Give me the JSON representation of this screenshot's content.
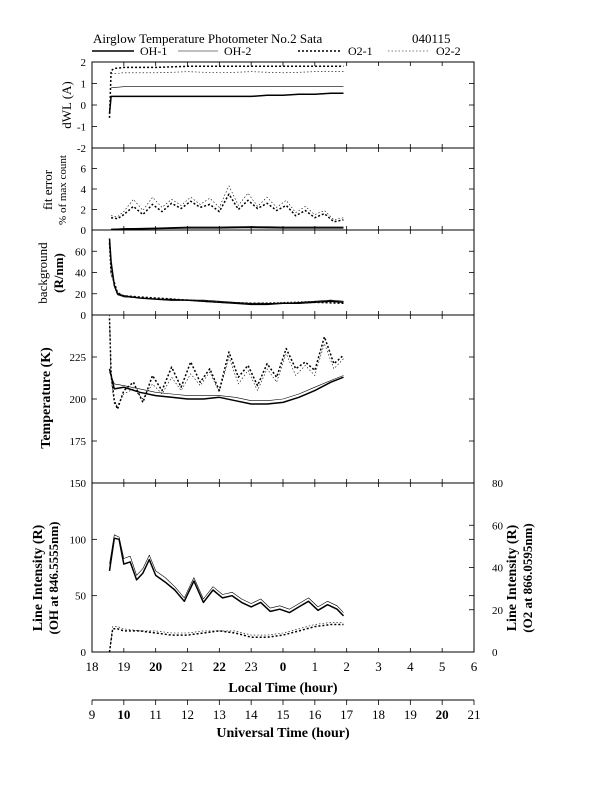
{
  "header": {
    "title": "Airglow Temperature Photometer No.2  Sata",
    "date_code": "040115"
  },
  "legend": [
    {
      "label": "OH-1",
      "style": "thick-solid"
    },
    {
      "label": "OH-2",
      "style": "thin-solid"
    },
    {
      "label": "O2-1",
      "style": "thick-dotted"
    },
    {
      "label": "O2-2",
      "style": "thin-dotted"
    }
  ],
  "colors": {
    "ink": "#000000",
    "background": "#ffffff"
  },
  "axes": {
    "local_time_label": "Local Time (hour)",
    "universal_time_label": "Universal Time (hour)",
    "local_ticks": [
      "18",
      "19",
      "20",
      "21",
      "22",
      "23",
      "0",
      "1",
      "2",
      "3",
      "4",
      "5",
      "6"
    ],
    "ut_ticks": [
      "9",
      "10",
      "11",
      "12",
      "13",
      "14",
      "15",
      "16",
      "17",
      "18",
      "19",
      "20",
      "21"
    ]
  },
  "chart_data": [
    {
      "type": "line",
      "title": "",
      "ylabel": "dWL (A)",
      "xlabel": "",
      "xlim": [
        18,
        30
      ],
      "ylim": [
        -2,
        2
      ],
      "yticks": [
        "2",
        "1",
        "0",
        "-1",
        "-2"
      ],
      "grid": false,
      "series": [
        {
          "name": "OH-1",
          "x": [
            18.55,
            18.6,
            19,
            20,
            21,
            22,
            23,
            23.5,
            24,
            24.5,
            25,
            25.5,
            25.9
          ],
          "y": [
            -0.4,
            0.4,
            0.4,
            0.4,
            0.4,
            0.4,
            0.4,
            0.45,
            0.45,
            0.5,
            0.5,
            0.55,
            0.55
          ]
        },
        {
          "name": "OH-2",
          "x": [
            18.6,
            19,
            20,
            21,
            22,
            23,
            24,
            25,
            25.9
          ],
          "y": [
            0.8,
            0.85,
            0.85,
            0.85,
            0.85,
            0.85,
            0.85,
            0.85,
            0.85
          ]
        },
        {
          "name": "O2-1",
          "x": [
            18.55,
            18.6,
            18.7,
            19,
            20,
            21,
            22,
            23,
            24,
            25,
            25.9
          ],
          "y": [
            -0.6,
            1.6,
            1.7,
            1.75,
            1.75,
            1.8,
            1.8,
            1.8,
            1.8,
            1.8,
            1.8
          ]
        },
        {
          "name": "O2-2",
          "x": [
            18.6,
            19,
            20,
            21,
            22,
            23,
            24,
            25,
            25.9
          ],
          "y": [
            1.45,
            1.5,
            1.5,
            1.55,
            1.5,
            1.55,
            1.5,
            1.55,
            1.55
          ]
        }
      ]
    },
    {
      "type": "line",
      "title": "",
      "ylabel": "fit error",
      "ylabel2": "% of max count",
      "xlim": [
        18,
        30
      ],
      "ylim": [
        0,
        8
      ],
      "yticks": [
        "6",
        "4",
        "2",
        "0"
      ],
      "grid": false,
      "series": [
        {
          "name": "OH-1",
          "x": [
            18.6,
            19,
            20,
            21,
            22,
            23,
            24,
            25,
            25.9
          ],
          "y": [
            0.05,
            0.1,
            0.15,
            0.2,
            0.2,
            0.25,
            0.2,
            0.2,
            0.2
          ]
        },
        {
          "name": "OH-2",
          "x": [
            18.6,
            19,
            20,
            21,
            22,
            23,
            24,
            25,
            25.9
          ],
          "y": [
            0.1,
            0.15,
            0.2,
            0.3,
            0.3,
            0.35,
            0.3,
            0.3,
            0.3
          ]
        },
        {
          "name": "O2-1",
          "x": [
            18.6,
            18.8,
            19,
            19.3,
            19.6,
            19.9,
            20.2,
            20.5,
            20.8,
            21.1,
            21.4,
            21.7,
            22,
            22.3,
            22.6,
            22.9,
            23.2,
            23.5,
            23.8,
            24.1,
            24.4,
            24.7,
            25,
            25.3,
            25.6,
            25.9
          ],
          "y": [
            1.2,
            1.1,
            1.5,
            2.3,
            1.5,
            2.5,
            1.8,
            2.6,
            2.1,
            2.8,
            2.2,
            2.5,
            1.8,
            3.5,
            2.0,
            2.9,
            2.1,
            2.6,
            1.9,
            2.4,
            1.4,
            1.9,
            1.2,
            1.6,
            0.8,
            1.0
          ]
        },
        {
          "name": "O2-2",
          "x": [
            18.6,
            18.8,
            19,
            19.3,
            19.6,
            19.9,
            20.2,
            20.5,
            20.8,
            21.1,
            21.4,
            21.7,
            22,
            22.3,
            22.6,
            22.9,
            23.2,
            23.5,
            23.8,
            24.1,
            24.4,
            24.7,
            25,
            25.3,
            25.6,
            25.9
          ],
          "y": [
            1.4,
            1.3,
            1.8,
            3.0,
            1.9,
            3.2,
            2.2,
            3.0,
            2.4,
            3.2,
            2.5,
            3.1,
            2.2,
            4.3,
            2.4,
            3.6,
            2.3,
            3.2,
            2.2,
            2.9,
            1.7,
            2.3,
            1.5,
            1.9,
            1.0,
            1.2
          ]
        }
      ]
    },
    {
      "type": "line",
      "title": "",
      "ylabel": "background",
      "ylabel2": "(R/nm)",
      "xlim": [
        18,
        30
      ],
      "ylim": [
        0,
        80
      ],
      "yticks": [
        "60",
        "40",
        "20",
        "0"
      ],
      "grid": false,
      "series": [
        {
          "name": "OH-1",
          "x": [
            18.55,
            18.6,
            18.7,
            18.8,
            19,
            19.5,
            20,
            20.5,
            21,
            21.5,
            22,
            22.5,
            23,
            23.5,
            24,
            24.5,
            25,
            25.5,
            25.9
          ],
          "y": [
            72,
            50,
            28,
            20,
            18,
            16,
            15,
            14,
            14,
            13,
            12,
            11,
            10,
            10,
            11,
            11,
            12,
            13,
            12
          ]
        },
        {
          "name": "OH-2",
          "x": [
            18.55,
            18.6,
            18.7,
            18.8,
            19,
            19.5,
            20,
            20.5,
            21,
            21.5,
            22,
            22.5,
            23,
            23.5,
            24,
            24.5,
            25,
            25.5,
            25.9
          ],
          "y": [
            70,
            48,
            27,
            19,
            17,
            16,
            15,
            15,
            14,
            14,
            13,
            12,
            11,
            11,
            11,
            12,
            13,
            14,
            13
          ]
        },
        {
          "name": "O2-1",
          "x": [
            18.55,
            18.6,
            18.8,
            19,
            20,
            21,
            22,
            23,
            24,
            25,
            25.9
          ],
          "y": [
            68,
            40,
            21,
            18,
            16,
            14,
            12,
            11,
            11,
            12,
            11
          ]
        },
        {
          "name": "O2-2",
          "x": [
            18.55,
            18.6,
            18.8,
            19,
            20,
            21,
            22,
            23,
            24,
            25,
            25.9
          ],
          "y": [
            66,
            38,
            20,
            17,
            15,
            14,
            12,
            11,
            12,
            13,
            12
          ]
        }
      ]
    },
    {
      "type": "line",
      "title": "",
      "ylabel": "Temperature (K)",
      "xlim": [
        18,
        30
      ],
      "ylim": [
        150,
        250
      ],
      "yticks": [
        "225",
        "200",
        "175"
      ],
      "grid": false,
      "series": [
        {
          "name": "OH-1",
          "x": [
            18.55,
            18.7,
            19,
            19.5,
            20,
            20.5,
            21,
            21.5,
            22,
            22.5,
            23,
            23.5,
            24,
            24.5,
            25,
            25.5,
            25.9
          ],
          "y": [
            218,
            206,
            207,
            204,
            202,
            201,
            200,
            200,
            201,
            199,
            197,
            197,
            198,
            201,
            205,
            210,
            213
          ]
        },
        {
          "name": "OH-2",
          "x": [
            18.55,
            18.7,
            19,
            19.5,
            20,
            20.5,
            21,
            21.5,
            22,
            22.5,
            23,
            23.5,
            24,
            24.5,
            25,
            25.5,
            25.9
          ],
          "y": [
            216,
            209,
            208,
            206,
            204,
            203,
            202,
            202,
            202,
            201,
            199,
            199,
            200,
            203,
            207,
            211,
            214
          ]
        },
        {
          "name": "O2-1",
          "x": [
            18.55,
            18.6,
            18.7,
            18.8,
            19,
            19.3,
            19.6,
            19.9,
            20.2,
            20.5,
            20.8,
            21.1,
            21.4,
            21.7,
            22,
            22.3,
            22.6,
            22.9,
            23.2,
            23.5,
            23.8,
            24.1,
            24.4,
            24.7,
            25,
            25.3,
            25.6,
            25.9
          ],
          "y": [
            248,
            215,
            199,
            194,
            205,
            210,
            198,
            214,
            205,
            219,
            207,
            222,
            210,
            218,
            205,
            228,
            213,
            220,
            208,
            221,
            213,
            230,
            218,
            222,
            217,
            237,
            221,
            226
          ]
        },
        {
          "name": "O2-2",
          "x": [
            18.55,
            18.6,
            18.7,
            18.8,
            19,
            19.3,
            19.6,
            19.9,
            20.2,
            20.5,
            20.8,
            21.1,
            21.4,
            21.7,
            22,
            22.3,
            22.6,
            22.9,
            23.2,
            23.5,
            23.8,
            24.1,
            24.4,
            24.7,
            25,
            25.3,
            25.6,
            25.9
          ],
          "y": [
            250,
            212,
            197,
            196,
            203,
            206,
            200,
            209,
            203,
            213,
            205,
            215,
            208,
            216,
            204,
            225,
            209,
            217,
            205,
            218,
            210,
            227,
            214,
            220,
            214,
            233,
            218,
            224
          ]
        }
      ]
    },
    {
      "type": "line",
      "title": "",
      "ylabel": "Line Intensity (R)",
      "ylabel2": "(OH at 846.5555nm)",
      "ylabel_right": "Line Intensity (R)",
      "ylabel_right2": "(O2 at 866.0595nm)",
      "xlim": [
        18,
        30
      ],
      "ylim": [
        0,
        150
      ],
      "ylim_right": [
        0,
        80
      ],
      "yticks": [
        "150",
        "100",
        "50",
        "0"
      ],
      "yticks_right": [
        "80",
        "60",
        "40",
        "20",
        "0"
      ],
      "grid": false,
      "series": [
        {
          "name": "OH-1",
          "axis": "left",
          "x": [
            18.55,
            18.7,
            18.85,
            19,
            19.2,
            19.4,
            19.6,
            19.8,
            20,
            20.3,
            20.6,
            20.9,
            21.2,
            21.5,
            21.8,
            22.1,
            22.4,
            22.7,
            23,
            23.3,
            23.6,
            23.9,
            24.2,
            24.5,
            24.8,
            25.1,
            25.4,
            25.7,
            25.9
          ],
          "y": [
            72,
            101,
            100,
            78,
            80,
            64,
            70,
            82,
            68,
            62,
            55,
            45,
            63,
            44,
            55,
            48,
            50,
            44,
            40,
            44,
            36,
            38,
            35,
            40,
            45,
            37,
            42,
            38,
            32
          ]
        },
        {
          "name": "OH-2",
          "axis": "left",
          "x": [
            18.55,
            18.7,
            18.85,
            19,
            19.2,
            19.4,
            19.6,
            19.8,
            20,
            20.3,
            20.6,
            20.9,
            21.2,
            21.5,
            21.8,
            22.1,
            22.4,
            22.7,
            23,
            23.3,
            23.6,
            23.9,
            24.2,
            24.5,
            24.8,
            25.1,
            25.4,
            25.7,
            25.9
          ],
          "y": [
            78,
            104,
            102,
            83,
            85,
            68,
            74,
            86,
            72,
            66,
            58,
            48,
            66,
            47,
            58,
            51,
            53,
            47,
            43,
            47,
            39,
            41,
            38,
            43,
            48,
            40,
            45,
            41,
            35
          ]
        },
        {
          "name": "O2-1",
          "axis": "right",
          "x": [
            18.55,
            18.65,
            18.8,
            19,
            19.5,
            20,
            20.5,
            21,
            21.5,
            22,
            22.5,
            23,
            23.5,
            24,
            24.5,
            25,
            25.5,
            25.9
          ],
          "y": [
            0,
            11,
            11,
            10,
            10,
            9,
            8,
            8,
            9,
            10,
            9,
            7,
            7,
            8,
            10,
            12,
            13,
            13
          ]
        },
        {
          "name": "O2-2",
          "axis": "right",
          "x": [
            18.55,
            18.65,
            18.8,
            19,
            19.5,
            20,
            20.5,
            21,
            21.5,
            22,
            22.5,
            23,
            23.5,
            24,
            24.5,
            25,
            25.5,
            25.9
          ],
          "y": [
            0,
            12,
            12,
            11,
            10,
            10,
            9,
            9,
            10,
            10,
            10,
            8,
            8,
            9,
            11,
            13,
            14,
            14
          ]
        }
      ]
    }
  ]
}
